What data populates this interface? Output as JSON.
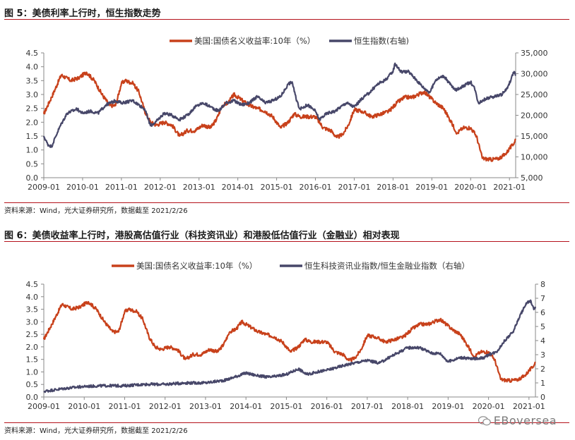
{
  "figures": [
    {
      "title": "图 5：美债利率上行时，恒生指数走势",
      "source": "资料来源：Wind，光大证券研究所，数据截至 2021/2/26"
    },
    {
      "title": "图 6：美债收益率上行时，港股高估值行业（科技资讯业）和港股低估值行业（金融业）相对表现",
      "source": "资料来源：Wind，光大证券研究所，数据截至 2021/2/26"
    }
  ],
  "watermark": "EBoversea",
  "colors": {
    "red": "#c8411b",
    "navy": "#474769",
    "rule": "#b5121b",
    "axis": "#777777"
  },
  "chart_data": [
    {
      "type": "line",
      "title": "",
      "xlabel": "",
      "ylabel": "",
      "x_ticks": [
        "2009-01",
        "2010-01",
        "2011-01",
        "2012-01",
        "2013-01",
        "2014-01",
        "2015-01",
        "2016-01",
        "2017-01",
        "2018-01",
        "2019-01",
        "2020-01",
        "2021-01"
      ],
      "y_left": {
        "min": 0,
        "max": 4.5,
        "step": 0.5,
        "ticks": [
          "0.0",
          "0.5",
          "1.0",
          "1.5",
          "2.0",
          "2.5",
          "3.0",
          "3.5",
          "4.0",
          "4.5"
        ]
      },
      "y_right": {
        "min": 5000,
        "max": 35000,
        "step": 5000,
        "ticks": [
          "5,000",
          "10,000",
          "15,000",
          "20,000",
          "25,000",
          "30,000",
          "35,000"
        ]
      },
      "grid": false,
      "legend_position": "top-center",
      "series": [
        {
          "name": "美国:国债名义收益率:10年（%）",
          "axis": "left",
          "color": "#c8411b",
          "x": [
            2009.0,
            2009.2,
            2009.45,
            2009.7,
            2009.9,
            2010.1,
            2010.3,
            2010.5,
            2010.7,
            2010.85,
            2011.0,
            2011.1,
            2011.3,
            2011.45,
            2011.6,
            2011.75,
            2011.9,
            2012.1,
            2012.3,
            2012.5,
            2012.7,
            2012.9,
            2013.1,
            2013.3,
            2013.45,
            2013.6,
            2013.75,
            2013.9,
            2014.1,
            2014.3,
            2014.5,
            2014.7,
            2014.9,
            2015.1,
            2015.3,
            2015.45,
            2015.6,
            2015.8,
            2016.0,
            2016.2,
            2016.4,
            2016.55,
            2016.7,
            2016.85,
            2017.0,
            2017.2,
            2017.45,
            2017.7,
            2017.9,
            2018.1,
            2018.3,
            2018.5,
            2018.8,
            2018.95,
            2019.1,
            2019.3,
            2019.5,
            2019.65,
            2019.8,
            2020.0,
            2020.15,
            2020.3,
            2020.5,
            2020.7,
            2020.9,
            2021.0,
            2021.1,
            2021.16
          ],
          "values": [
            2.3,
            2.9,
            3.7,
            3.5,
            3.6,
            3.8,
            3.5,
            3.0,
            2.6,
            2.6,
            3.4,
            3.5,
            3.4,
            3.1,
            2.4,
            2.0,
            1.9,
            2.0,
            1.9,
            1.5,
            1.7,
            1.7,
            1.9,
            1.8,
            2.1,
            2.6,
            2.7,
            3.0,
            2.8,
            2.6,
            2.5,
            2.4,
            2.2,
            1.8,
            2.0,
            2.3,
            2.2,
            2.2,
            2.2,
            1.8,
            1.7,
            1.45,
            1.55,
            1.9,
            2.45,
            2.4,
            2.2,
            2.3,
            2.4,
            2.7,
            2.9,
            2.9,
            3.1,
            2.9,
            2.7,
            2.5,
            2.0,
            1.6,
            1.8,
            1.8,
            1.5,
            0.7,
            0.65,
            0.68,
            0.85,
            1.05,
            1.2,
            1.4
          ]
        },
        {
          "name": "恒生指数(右轴)",
          "axis": "right",
          "color": "#474769",
          "x": [
            2009.0,
            2009.1,
            2009.2,
            2009.4,
            2009.6,
            2009.85,
            2010.0,
            2010.2,
            2010.4,
            2010.6,
            2010.85,
            2011.0,
            2011.3,
            2011.6,
            2011.75,
            2011.9,
            2012.1,
            2012.3,
            2012.5,
            2012.7,
            2012.9,
            2013.1,
            2013.3,
            2013.5,
            2013.7,
            2013.9,
            2014.1,
            2014.3,
            2014.5,
            2014.7,
            2014.9,
            2015.1,
            2015.3,
            2015.4,
            2015.5,
            2015.6,
            2015.8,
            2016.0,
            2016.1,
            2016.3,
            2016.5,
            2016.8,
            2017.0,
            2017.2,
            2017.4,
            2017.6,
            2017.8,
            2018.0,
            2018.05,
            2018.2,
            2018.4,
            2018.6,
            2018.8,
            2018.95,
            2019.1,
            2019.3,
            2019.6,
            2019.8,
            2020.0,
            2020.1,
            2020.2,
            2020.4,
            2020.6,
            2020.8,
            2020.95,
            2021.05,
            2021.12,
            2021.16
          ],
          "values": [
            15000,
            13000,
            12500,
            17000,
            20500,
            21500,
            20500,
            21000,
            20500,
            22500,
            23500,
            23000,
            23500,
            21500,
            17500,
            18500,
            20500,
            20000,
            19000,
            20000,
            22000,
            23000,
            22000,
            21000,
            23000,
            23500,
            22500,
            23000,
            24500,
            23000,
            23500,
            24500,
            27500,
            28000,
            24000,
            21500,
            22500,
            21000,
            19000,
            20500,
            21000,
            23000,
            22000,
            24000,
            25500,
            27500,
            28500,
            30500,
            32500,
            30500,
            30500,
            28500,
            26500,
            25500,
            28500,
            29500,
            26000,
            27000,
            28000,
            26500,
            23000,
            24000,
            24500,
            25000,
            26500,
            29000,
            30500,
            29500
          ]
        }
      ]
    },
    {
      "type": "line",
      "title": "",
      "xlabel": "",
      "ylabel": "",
      "x_ticks": [
        "2009-01",
        "2010-01",
        "2011-01",
        "2012-01",
        "2013-01",
        "2014-01",
        "2015-01",
        "2016-01",
        "2017-01",
        "2018-01",
        "2019-01",
        "2020-01",
        "2021-01"
      ],
      "y_left": {
        "min": 0,
        "max": 4.5,
        "step": 0.5,
        "ticks": [
          "0.0",
          "0.5",
          "1.0",
          "1.5",
          "2.0",
          "2.5",
          "3.0",
          "3.5",
          "4.0",
          "4.5"
        ]
      },
      "y_right": {
        "min": 0,
        "max": 8,
        "step": 1,
        "ticks": [
          "0",
          "1",
          "2",
          "3",
          "4",
          "5",
          "6",
          "7",
          "8"
        ]
      },
      "grid": false,
      "legend_position": "top-center",
      "series": [
        {
          "name": "美国:国债名义收益率:10年（%）",
          "axis": "left",
          "color": "#c8411b",
          "x": [
            2009.0,
            2009.2,
            2009.45,
            2009.7,
            2009.9,
            2010.1,
            2010.3,
            2010.5,
            2010.7,
            2010.85,
            2011.0,
            2011.1,
            2011.3,
            2011.45,
            2011.6,
            2011.75,
            2011.9,
            2012.1,
            2012.3,
            2012.5,
            2012.7,
            2012.9,
            2013.1,
            2013.3,
            2013.45,
            2013.6,
            2013.75,
            2013.9,
            2014.1,
            2014.3,
            2014.5,
            2014.7,
            2014.9,
            2015.1,
            2015.3,
            2015.45,
            2015.6,
            2015.8,
            2016.0,
            2016.2,
            2016.4,
            2016.55,
            2016.7,
            2016.85,
            2017.0,
            2017.2,
            2017.45,
            2017.7,
            2017.9,
            2018.1,
            2018.3,
            2018.5,
            2018.8,
            2018.95,
            2019.1,
            2019.3,
            2019.5,
            2019.65,
            2019.8,
            2020.0,
            2020.15,
            2020.3,
            2020.5,
            2020.7,
            2020.9,
            2021.0,
            2021.1,
            2021.16
          ],
          "values": [
            2.3,
            2.9,
            3.7,
            3.5,
            3.6,
            3.8,
            3.5,
            3.0,
            2.6,
            2.6,
            3.4,
            3.5,
            3.4,
            3.1,
            2.4,
            2.0,
            1.9,
            2.0,
            1.9,
            1.5,
            1.7,
            1.7,
            1.9,
            1.8,
            2.1,
            2.6,
            2.7,
            3.0,
            2.8,
            2.6,
            2.5,
            2.4,
            2.2,
            1.8,
            2.0,
            2.3,
            2.2,
            2.2,
            2.2,
            1.8,
            1.7,
            1.45,
            1.55,
            1.9,
            2.45,
            2.4,
            2.2,
            2.3,
            2.4,
            2.7,
            2.9,
            2.9,
            3.1,
            2.9,
            2.7,
            2.5,
            2.0,
            1.6,
            1.8,
            1.8,
            1.5,
            0.7,
            0.65,
            0.68,
            0.85,
            1.05,
            1.2,
            1.4
          ]
        },
        {
          "name": "恒生科技资讯业指数/恒生金融业指数（右轴）",
          "axis": "right",
          "color": "#474769",
          "x": [
            2009.0,
            2009.5,
            2010.0,
            2010.5,
            2011.0,
            2011.5,
            2012.0,
            2012.5,
            2013.0,
            2013.5,
            2014.0,
            2014.3,
            2014.6,
            2015.0,
            2015.3,
            2015.5,
            2015.8,
            2016.0,
            2016.5,
            2017.0,
            2017.3,
            2017.6,
            2018.0,
            2018.3,
            2018.6,
            2018.8,
            2019.0,
            2019.3,
            2019.6,
            2019.9,
            2020.0,
            2020.2,
            2020.4,
            2020.6,
            2020.8,
            2020.95,
            2021.05,
            2021.12,
            2021.16
          ],
          "values": [
            0.4,
            0.6,
            0.75,
            0.8,
            0.8,
            0.9,
            0.9,
            1.0,
            1.0,
            1.2,
            1.7,
            1.5,
            1.4,
            1.6,
            2.0,
            1.6,
            1.8,
            1.9,
            2.3,
            2.6,
            2.4,
            2.9,
            3.5,
            3.5,
            3.1,
            3.1,
            2.5,
            2.8,
            2.7,
            2.8,
            3.0,
            3.2,
            4.0,
            4.6,
            5.9,
            6.7,
            6.8,
            6.2,
            6.4
          ]
        }
      ]
    }
  ]
}
